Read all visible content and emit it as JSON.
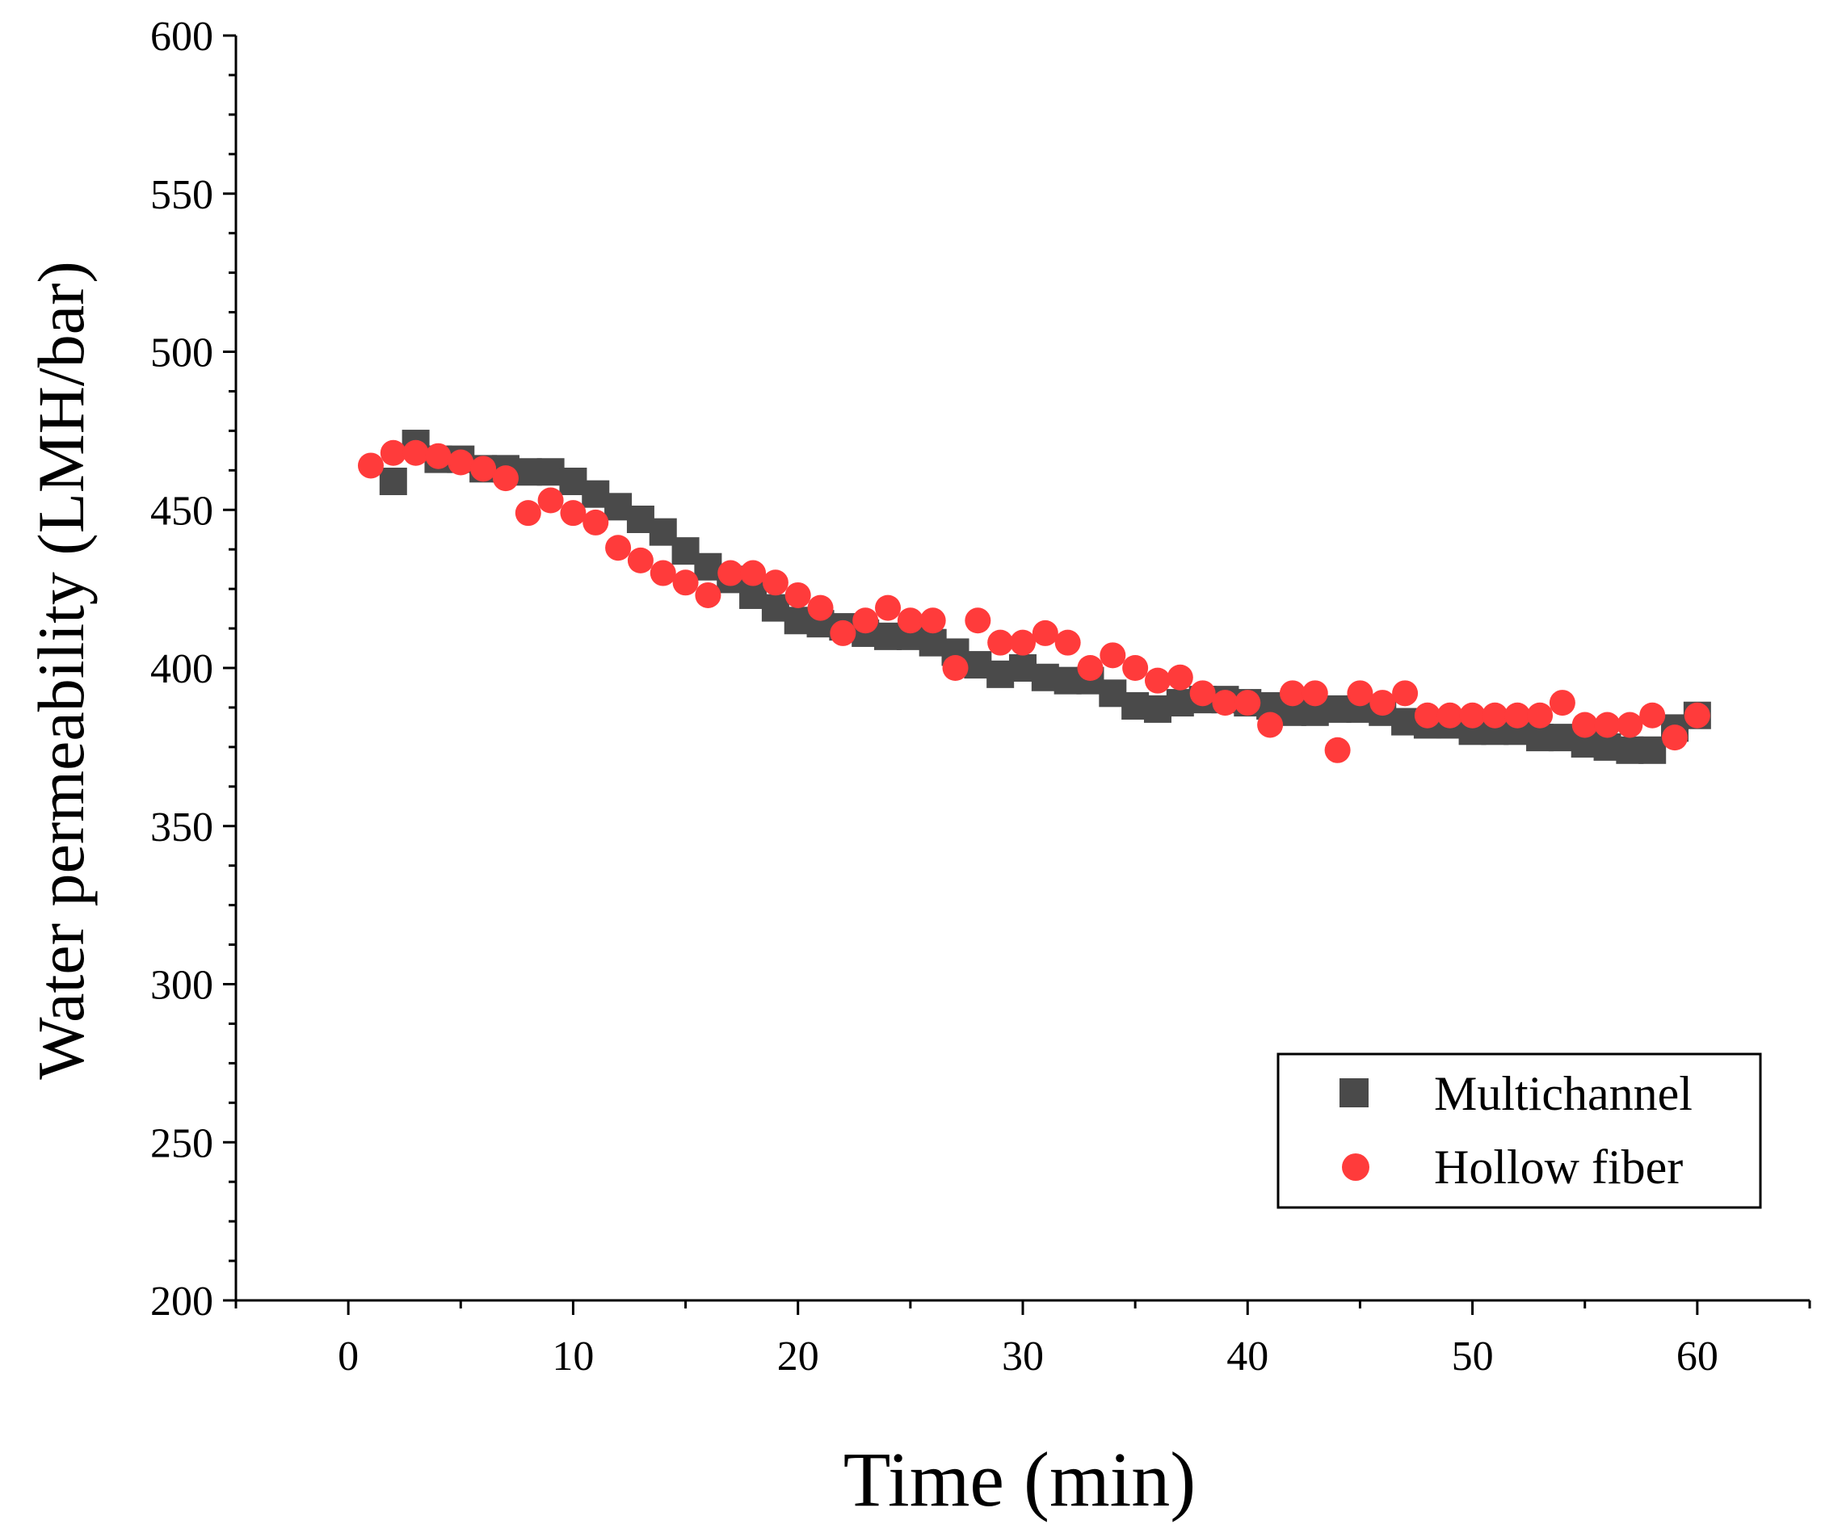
{
  "chart_data": {
    "type": "scatter",
    "title": "",
    "xlabel": "Time (min)",
    "ylabel": "Water permeability (LMH/bar)",
    "xlim": [
      -5,
      65
    ],
    "ylim": [
      200,
      600
    ],
    "xticks": [
      0,
      10,
      20,
      30,
      40,
      50,
      60
    ],
    "yticks": [
      200,
      250,
      300,
      350,
      400,
      450,
      500,
      550,
      600
    ],
    "legend_position": "bottom-right",
    "series": [
      {
        "name": "Multichannel",
        "marker": "square",
        "color": "#4a4a4a",
        "x": [
          2,
          3,
          4,
          5,
          6,
          7,
          8,
          9,
          10,
          11,
          12,
          13,
          14,
          15,
          16,
          17,
          18,
          19,
          20,
          21,
          22,
          23,
          24,
          25,
          26,
          27,
          28,
          29,
          30,
          31,
          32,
          33,
          34,
          35,
          36,
          37,
          38,
          39,
          40,
          41,
          42,
          43,
          44,
          45,
          46,
          47,
          48,
          49,
          50,
          51,
          52,
          53,
          54,
          55,
          56,
          57,
          58,
          59,
          60
        ],
        "y": [
          459,
          471,
          466,
          466,
          463,
          463,
          462,
          462,
          459,
          455,
          451,
          447,
          443,
          437,
          432,
          428,
          423,
          419,
          415,
          414,
          413,
          411,
          410,
          410,
          408,
          405,
          401,
          398,
          400,
          397,
          396,
          396,
          392,
          388,
          387,
          389,
          390,
          390,
          389,
          388,
          386,
          386,
          387,
          387,
          386,
          383,
          382,
          382,
          380,
          380,
          380,
          378,
          378,
          376,
          375,
          374,
          374,
          381,
          385
        ]
      },
      {
        "name": "Hollow fiber",
        "marker": "circle",
        "color": "#ff3b3b",
        "x": [
          1,
          2,
          3,
          4,
          5,
          6,
          7,
          8,
          9,
          10,
          11,
          12,
          13,
          14,
          15,
          16,
          17,
          18,
          19,
          20,
          21,
          22,
          23,
          24,
          25,
          26,
          27,
          28,
          29,
          30,
          31,
          32,
          33,
          34,
          35,
          36,
          37,
          38,
          39,
          40,
          41,
          42,
          43,
          44,
          45,
          46,
          47,
          48,
          49,
          50,
          51,
          52,
          53,
          54,
          55,
          56,
          57,
          58,
          59,
          60
        ],
        "y": [
          464,
          468,
          468,
          467,
          465,
          463,
          460,
          449,
          453,
          449,
          446,
          438,
          434,
          430,
          427,
          423,
          430,
          430,
          427,
          423,
          419,
          411,
          415,
          419,
          415,
          415,
          400,
          415,
          408,
          408,
          411,
          408,
          400,
          404,
          400,
          396,
          397,
          392,
          389,
          389,
          382,
          392,
          392,
          374,
          392,
          389,
          392,
          385,
          385,
          385,
          385,
          385,
          385,
          389,
          382,
          382,
          382,
          385,
          378,
          385
        ]
      }
    ]
  }
}
